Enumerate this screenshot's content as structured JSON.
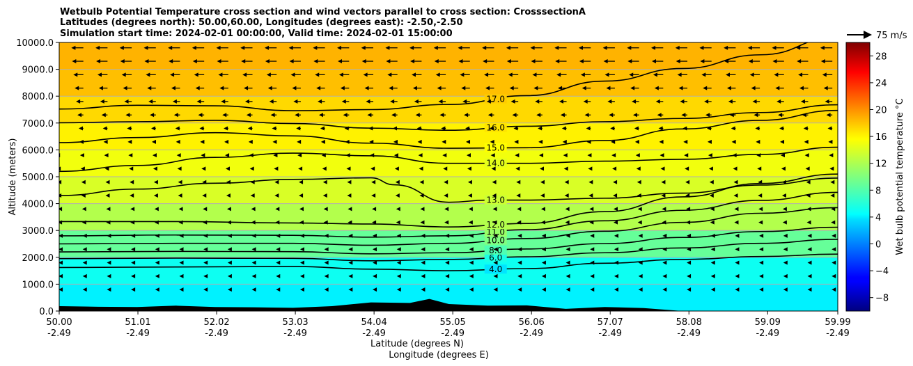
{
  "chart_data": {
    "type": "contour",
    "title_lines": [
      "Wetbulb Potential Temperature cross section and wind vectors parallel to cross section: CrosssectionA",
      "Latitudes (degrees north): 50.00,60.00, Longitudes (degrees east): -2.50,-2.50",
      "Simulation start time: 2024-02-01 00:00:00, Valid time: 2024-02-01 15:00:00"
    ],
    "xlabel_line1": "Latitude (degrees N)",
    "xlabel_line2": "Longitude (degrees E)",
    "ylabel": "Altitude (meters)",
    "ylim": [
      0,
      10000
    ],
    "xlim": [
      50.0,
      59.99
    ],
    "x_ticks": [
      {
        "lat": "50.00",
        "lon": "-2.49",
        "v": 50.0
      },
      {
        "lat": "51.01",
        "lon": "-2.49",
        "v": 51.01
      },
      {
        "lat": "52.02",
        "lon": "-2.49",
        "v": 52.02
      },
      {
        "lat": "53.03",
        "lon": "-2.49",
        "v": 53.03
      },
      {
        "lat": "54.04",
        "lon": "-2.49",
        "v": 54.04
      },
      {
        "lat": "55.05",
        "lon": "-2.49",
        "v": 55.05
      },
      {
        "lat": "56.06",
        "lon": "-2.49",
        "v": 56.06
      },
      {
        "lat": "57.07",
        "lon": "-2.49",
        "v": 57.07
      },
      {
        "lat": "58.08",
        "lon": "-2.49",
        "v": 58.08
      },
      {
        "lat": "59.09",
        "lon": "-2.49",
        "v": 59.09
      },
      {
        "lat": "59.99",
        "lon": "-2.49",
        "v": 59.99
      }
    ],
    "y_ticks": [
      {
        "label": "0.0",
        "v": 0
      },
      {
        "label": "1000.0",
        "v": 1000
      },
      {
        "label": "2000.0",
        "v": 2000
      },
      {
        "label": "3000.0",
        "v": 3000
      },
      {
        "label": "4000.0",
        "v": 4000
      },
      {
        "label": "5000.0",
        "v": 5000
      },
      {
        "label": "6000.0",
        "v": 6000
      },
      {
        "label": "7000.0",
        "v": 7000
      },
      {
        "label": "8000.0",
        "v": 8000
      },
      {
        "label": "9000.0",
        "v": 9000
      },
      {
        "label": "10000.0",
        "v": 10000
      }
    ],
    "grid": "horizontal",
    "colorbar": {
      "label": "Wet bulb potential temperature $^\\circ$C",
      "label_text": "Wet bulb potential temperature °C",
      "range": [
        -10,
        30
      ],
      "ticks": [
        {
          "label": "−8",
          "v": -8
        },
        {
          "label": "−4",
          "v": -4
        },
        {
          "label": "0",
          "v": 0
        },
        {
          "label": "4",
          "v": 4
        },
        {
          "label": "8",
          "v": 8
        },
        {
          "label": "12",
          "v": 12
        },
        {
          "label": "16",
          "v": 16
        },
        {
          "label": "20",
          "v": 20
        },
        {
          "label": "24",
          "v": 24
        },
        {
          "label": "28",
          "v": 28
        }
      ],
      "colormap": "jet"
    },
    "quiver_key": {
      "label": "75 m/s",
      "speed": 75
    },
    "contour_levels": [
      {
        "level": 4.0,
        "label": "4.0",
        "pts": [
          [
            50.0,
            1620
          ],
          [
            51.5,
            1640
          ],
          [
            53.0,
            1660
          ],
          [
            54.0,
            1560
          ],
          [
            55.0,
            1500
          ],
          [
            56.0,
            1580
          ],
          [
            57.0,
            1780
          ],
          [
            58.0,
            1920
          ],
          [
            59.0,
            2030
          ],
          [
            59.99,
            2120
          ]
        ]
      },
      {
        "level": 6.0,
        "label": "6.0",
        "pts": [
          [
            50.0,
            1950
          ],
          [
            51.5,
            1970
          ],
          [
            53.0,
            1960
          ],
          [
            54.0,
            1870
          ],
          [
            55.0,
            1920
          ],
          [
            56.0,
            2020
          ],
          [
            57.0,
            2170
          ],
          [
            58.0,
            2350
          ],
          [
            59.0,
            2520
          ],
          [
            59.99,
            2670
          ]
        ]
      },
      {
        "level": 8.0,
        "label": "8.0",
        "pts": [
          [
            50.0,
            2200
          ],
          [
            51.5,
            2220
          ],
          [
            53.0,
            2210
          ],
          [
            54.0,
            2130
          ],
          [
            55.0,
            2170
          ],
          [
            56.0,
            2310
          ],
          [
            57.0,
            2510
          ],
          [
            58.0,
            2740
          ],
          [
            59.0,
            2960
          ],
          [
            59.99,
            3120
          ]
        ]
      },
      {
        "level": 10.0,
        "label": "10.0",
        "pts": [
          [
            50.0,
            2500
          ],
          [
            51.5,
            2520
          ],
          [
            53.0,
            2520
          ],
          [
            54.0,
            2450
          ],
          [
            55.0,
            2520
          ],
          [
            56.0,
            2700
          ],
          [
            57.0,
            2970
          ],
          [
            58.0,
            3300
          ],
          [
            59.0,
            3640
          ],
          [
            59.99,
            3850
          ]
        ]
      },
      {
        "level": 11.0,
        "label": "11.0",
        "pts": [
          [
            50.0,
            2800
          ],
          [
            51.5,
            2830
          ],
          [
            53.0,
            2820
          ],
          [
            54.0,
            2750
          ],
          [
            55.0,
            2800
          ],
          [
            56.0,
            3030
          ],
          [
            57.0,
            3360
          ],
          [
            58.0,
            3750
          ],
          [
            59.0,
            4120
          ],
          [
            59.99,
            4420
          ]
        ]
      },
      {
        "level": 12.0,
        "label": "12.0",
        "pts": [
          [
            50.0,
            3330
          ],
          [
            51.5,
            3330
          ],
          [
            53.0,
            3280
          ],
          [
            54.0,
            3240
          ],
          [
            55.0,
            3130
          ],
          [
            56.0,
            3260
          ],
          [
            57.0,
            3700
          ],
          [
            58.0,
            4250
          ],
          [
            59.0,
            4750
          ],
          [
            59.99,
            5100
          ]
        ]
      },
      {
        "level": 13.0,
        "label": "13.0",
        "pts": [
          [
            50.0,
            4300
          ],
          [
            51.0,
            4540
          ],
          [
            52.0,
            4760
          ],
          [
            53.0,
            4900
          ],
          [
            54.0,
            4960
          ],
          [
            54.3,
            4700
          ],
          [
            55.0,
            4050
          ],
          [
            55.5,
            4130
          ],
          [
            56.0,
            4130
          ],
          [
            57.0,
            4200
          ],
          [
            58.0,
            4390
          ],
          [
            59.0,
            4690
          ],
          [
            59.99,
            4950
          ]
        ]
      },
      {
        "level": 14.0,
        "label": "14.0",
        "pts": [
          [
            50.0,
            5200
          ],
          [
            51.0,
            5420
          ],
          [
            52.0,
            5720
          ],
          [
            53.0,
            5880
          ],
          [
            54.0,
            5780
          ],
          [
            55.0,
            5500
          ],
          [
            56.0,
            5500
          ],
          [
            57.0,
            5580
          ],
          [
            58.0,
            5650
          ],
          [
            59.0,
            5830
          ],
          [
            59.99,
            6100
          ]
        ]
      },
      {
        "level": 15.0,
        "label": "15.0",
        "pts": [
          [
            50.0,
            6270
          ],
          [
            51.0,
            6460
          ],
          [
            52.0,
            6640
          ],
          [
            53.0,
            6520
          ],
          [
            54.0,
            6250
          ],
          [
            55.0,
            6060
          ],
          [
            56.0,
            6080
          ],
          [
            57.0,
            6350
          ],
          [
            58.0,
            6780
          ],
          [
            59.0,
            7100
          ],
          [
            59.99,
            7470
          ]
        ]
      },
      {
        "level": 16.0,
        "label": "16.0",
        "pts": [
          [
            50.0,
            7010
          ],
          [
            51.0,
            7050
          ],
          [
            52.0,
            7100
          ],
          [
            53.0,
            6980
          ],
          [
            54.0,
            6810
          ],
          [
            55.0,
            6730
          ],
          [
            56.0,
            6880
          ],
          [
            57.0,
            7050
          ],
          [
            58.0,
            7170
          ],
          [
            59.0,
            7390
          ],
          [
            59.99,
            7680
          ]
        ]
      },
      {
        "level": 17.0,
        "label": "17.0",
        "pts": [
          [
            50.0,
            7520
          ],
          [
            51.0,
            7660
          ],
          [
            52.0,
            7640
          ],
          [
            53.0,
            7460
          ],
          [
            54.0,
            7500
          ],
          [
            55.0,
            7690
          ],
          [
            56.0,
            8020
          ],
          [
            57.0,
            8560
          ],
          [
            58.0,
            9030
          ],
          [
            59.0,
            9540
          ],
          [
            59.99,
            10200
          ]
        ]
      }
    ],
    "fill_bands": [
      {
        "from": 0,
        "to": 1000,
        "temp": 4.5
      },
      {
        "from": 1000,
        "to": 2000,
        "temp": 5.5
      },
      {
        "from": 2000,
        "to": 3000,
        "temp": 9.0
      },
      {
        "from": 3000,
        "to": 4000,
        "temp": 12.0
      },
      {
        "from": 4000,
        "to": 5000,
        "temp": 13.5
      },
      {
        "from": 5000,
        "to": 6000,
        "temp": 14.5
      },
      {
        "from": 6000,
        "to": 7000,
        "temp": 15.5
      },
      {
        "from": 7000,
        "to": 8000,
        "temp": 16.5
      },
      {
        "from": 8000,
        "to": 9000,
        "temp": 17.5
      },
      {
        "from": 9000,
        "to": 10000,
        "temp": 18.0
      }
    ],
    "orography": [
      [
        50.0,
        180
      ],
      [
        50.5,
        160
      ],
      [
        51.0,
        150
      ],
      [
        51.5,
        200
      ],
      [
        52.0,
        150
      ],
      [
        52.5,
        140
      ],
      [
        53.0,
        120
      ],
      [
        53.5,
        180
      ],
      [
        54.0,
        320
      ],
      [
        54.5,
        300
      ],
      [
        54.75,
        450
      ],
      [
        55.0,
        260
      ],
      [
        55.5,
        200
      ],
      [
        56.0,
        210
      ],
      [
        56.5,
        80
      ],
      [
        57.0,
        150
      ],
      [
        57.5,
        110
      ],
      [
        58.0,
        0
      ]
    ],
    "wind_vectors": {
      "spacing_lat": 0.31,
      "levels": [
        {
          "z": 9800,
          "u": -18
        },
        {
          "z": 9300,
          "u": -17
        },
        {
          "z": 8800,
          "u": -15
        },
        {
          "z": 8300,
          "u": -13
        },
        {
          "z": 7800,
          "u": -11
        },
        {
          "z": 7300,
          "u": -9
        },
        {
          "z": 6800,
          "u": -7
        },
        {
          "z": 6300,
          "u": -6
        },
        {
          "z": 5800,
          "u": -5
        },
        {
          "z": 5300,
          "u": -4
        },
        {
          "z": 4800,
          "u": -3
        },
        {
          "z": 4300,
          "u": -3
        },
        {
          "z": 3800,
          "u": -2
        },
        {
          "z": 3300,
          "u": -2
        },
        {
          "z": 2800,
          "u": -1
        },
        {
          "z": 2300,
          "u": -1
        },
        {
          "z": 1800,
          "u": -1
        },
        {
          "z": 1300,
          "u": -1
        },
        {
          "z": 800,
          "u": -1
        }
      ]
    }
  }
}
